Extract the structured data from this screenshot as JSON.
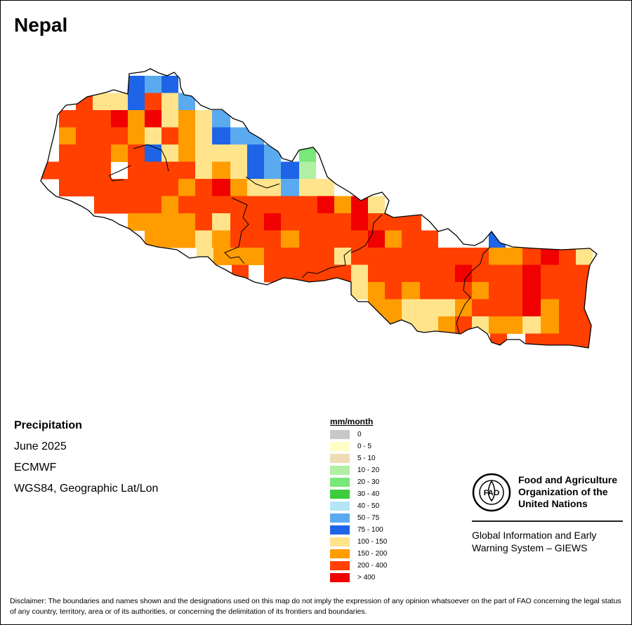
{
  "map": {
    "title": "Nepal",
    "country_boundary": [
      [
        184,
        105
      ],
      [
        206,
        102
      ],
      [
        214,
        98
      ],
      [
        226,
        104
      ],
      [
        238,
        108
      ],
      [
        248,
        103
      ],
      [
        256,
        112
      ],
      [
        257,
        124
      ],
      [
        262,
        135
      ],
      [
        273,
        137
      ],
      [
        286,
        150
      ],
      [
        300,
        156
      ],
      [
        316,
        156
      ],
      [
        332,
        169
      ],
      [
        346,
        174
      ],
      [
        355,
        188
      ],
      [
        372,
        198
      ],
      [
        384,
        208
      ],
      [
        396,
        216
      ],
      [
        402,
        226
      ],
      [
        416,
        230
      ],
      [
        426,
        214
      ],
      [
        446,
        210
      ],
      [
        454,
        220
      ],
      [
        460,
        236
      ],
      [
        466,
        252
      ],
      [
        478,
        262
      ],
      [
        498,
        274
      ],
      [
        514,
        286
      ],
      [
        530,
        278
      ],
      [
        544,
        274
      ],
      [
        554,
        286
      ],
      [
        548,
        304
      ],
      [
        560,
        310
      ],
      [
        600,
        306
      ],
      [
        612,
        316
      ],
      [
        624,
        330
      ],
      [
        638,
        326
      ],
      [
        650,
        336
      ],
      [
        660,
        348
      ],
      [
        676,
        350
      ],
      [
        688,
        344
      ],
      [
        700,
        330
      ],
      [
        712,
        346
      ],
      [
        730,
        352
      ],
      [
        760,
        354
      ],
      [
        800,
        356
      ],
      [
        840,
        354
      ],
      [
        850,
        362
      ],
      [
        840,
        378
      ],
      [
        836,
        400
      ],
      [
        832,
        440
      ],
      [
        842,
        464
      ],
      [
        838,
        496
      ],
      [
        826,
        494
      ],
      [
        812,
        492
      ],
      [
        780,
        492
      ],
      [
        748,
        490
      ],
      [
        740,
        484
      ],
      [
        722,
        484
      ],
      [
        712,
        492
      ],
      [
        700,
        488
      ],
      [
        694,
        476
      ],
      [
        680,
        466
      ],
      [
        666,
        470
      ],
      [
        656,
        476
      ],
      [
        640,
        474
      ],
      [
        620,
        472
      ],
      [
        604,
        474
      ],
      [
        594,
        472
      ],
      [
        586,
        462
      ],
      [
        572,
        456
      ],
      [
        556,
        462
      ],
      [
        548,
        454
      ],
      [
        538,
        444
      ],
      [
        524,
        430
      ],
      [
        510,
        430
      ],
      [
        500,
        420
      ],
      [
        500,
        402
      ],
      [
        480,
        396
      ],
      [
        462,
        400
      ],
      [
        440,
        402
      ],
      [
        420,
        398
      ],
      [
        404,
        396
      ],
      [
        380,
        406
      ],
      [
        362,
        402
      ],
      [
        350,
        396
      ],
      [
        334,
        392
      ],
      [
        320,
        384
      ],
      [
        308,
        378
      ],
      [
        296,
        366
      ],
      [
        284,
        366
      ],
      [
        270,
        368
      ],
      [
        252,
        356
      ],
      [
        238,
        354
      ],
      [
        224,
        352
      ],
      [
        208,
        348
      ],
      [
        200,
        338
      ],
      [
        184,
        326
      ],
      [
        170,
        320
      ],
      [
        160,
        314
      ],
      [
        148,
        310
      ],
      [
        134,
        308
      ],
      [
        126,
        300
      ],
      [
        116,
        294
      ],
      [
        100,
        286
      ],
      [
        80,
        280
      ],
      [
        68,
        270
      ],
      [
        58,
        258
      ],
      [
        62,
        246
      ],
      [
        68,
        230
      ],
      [
        72,
        212
      ],
      [
        76,
        196
      ],
      [
        80,
        178
      ],
      [
        82,
        164
      ],
      [
        94,
        150
      ],
      [
        110,
        148
      ],
      [
        124,
        138
      ],
      [
        150,
        132
      ],
      [
        162,
        128
      ],
      [
        182,
        134
      ]
    ],
    "grid_cells": [
      {
        "row": 0,
        "cols": [
          [
            182,
            206,
            "75 - 100"
          ],
          [
            206,
            230,
            "50 - 75"
          ],
          [
            230,
            254,
            "75 - 100"
          ]
        ]
      },
      {
        "row": 1,
        "cols": [
          [
            108,
            132,
            "200 - 400"
          ],
          [
            132,
            158,
            "100 - 150"
          ],
          [
            158,
            182,
            "100 - 150"
          ],
          [
            182,
            206,
            "75 - 100"
          ],
          [
            206,
            230,
            "200 - 400"
          ],
          [
            230,
            254,
            "100 - 150"
          ],
          [
            254,
            278,
            "50 - 75"
          ]
        ]
      },
      {
        "row": 2,
        "cols": [
          [
            84,
            108,
            "200 - 400"
          ],
          [
            108,
            158,
            "200 - 400"
          ],
          [
            158,
            182,
            "> 400"
          ],
          [
            182,
            206,
            "150 - 200"
          ],
          [
            206,
            230,
            "> 400"
          ],
          [
            230,
            254,
            "100 - 150"
          ],
          [
            254,
            278,
            "150 - 200"
          ],
          [
            278,
            302,
            "100 - 150"
          ],
          [
            302,
            328,
            "50 - 75"
          ]
        ]
      },
      {
        "row": 3,
        "cols": [
          [
            84,
            108,
            "150 - 200"
          ],
          [
            108,
            182,
            "200 - 400"
          ],
          [
            182,
            206,
            "150 - 200"
          ],
          [
            206,
            230,
            "100 - 150"
          ],
          [
            230,
            254,
            "200 - 400"
          ],
          [
            254,
            278,
            "150 - 200"
          ],
          [
            278,
            302,
            "100 - 150"
          ],
          [
            302,
            328,
            "75 - 100"
          ],
          [
            328,
            352,
            "50 - 75"
          ],
          [
            352,
            376,
            "50 - 75"
          ]
        ]
      },
      {
        "row": 4,
        "cols": [
          [
            84,
            158,
            "200 - 400"
          ],
          [
            158,
            182,
            "150 - 200"
          ],
          [
            182,
            206,
            "200 - 400"
          ],
          [
            206,
            230,
            "75 - 100"
          ],
          [
            230,
            254,
            "100 - 150"
          ],
          [
            254,
            278,
            "150 - 200"
          ],
          [
            278,
            352,
            "100 - 150"
          ],
          [
            352,
            376,
            "75 - 100"
          ],
          [
            376,
            400,
            "50 - 75"
          ],
          [
            426,
            450,
            "20 - 30"
          ]
        ]
      },
      {
        "row": 5,
        "cols": [
          [
            60,
            158,
            "200 - 400"
          ],
          [
            182,
            206,
            "200 - 400"
          ],
          [
            206,
            278,
            "200 - 400"
          ],
          [
            278,
            302,
            "100 - 150"
          ],
          [
            302,
            328,
            "150 - 200"
          ],
          [
            328,
            352,
            "100 - 150"
          ],
          [
            352,
            376,
            "75 - 100"
          ],
          [
            376,
            400,
            "50 - 75"
          ],
          [
            400,
            426,
            "75 - 100"
          ],
          [
            426,
            450,
            "10 - 20"
          ]
        ]
      },
      {
        "row": 6,
        "cols": [
          [
            84,
            254,
            "200 - 400"
          ],
          [
            254,
            278,
            "150 - 200"
          ],
          [
            278,
            302,
            "200 - 400"
          ],
          [
            302,
            328,
            "> 400"
          ],
          [
            328,
            352,
            "150 - 200"
          ],
          [
            352,
            400,
            "100 - 150"
          ],
          [
            400,
            426,
            "50 - 75"
          ],
          [
            426,
            476,
            "100 - 150"
          ]
        ]
      },
      {
        "row": 7,
        "cols": [
          [
            134,
            230,
            "200 - 400"
          ],
          [
            230,
            254,
            "150 - 200"
          ],
          [
            254,
            452,
            "200 - 400"
          ],
          [
            452,
            476,
            "> 400"
          ],
          [
            476,
            500,
            "150 - 200"
          ],
          [
            500,
            524,
            "> 400"
          ],
          [
            524,
            548,
            "100 - 150"
          ]
        ]
      },
      {
        "row": 8,
        "cols": [
          [
            182,
            278,
            "150 - 200"
          ],
          [
            278,
            302,
            "200 - 400"
          ],
          [
            302,
            328,
            "100 - 150"
          ],
          [
            328,
            376,
            "200 - 400"
          ],
          [
            376,
            400,
            "> 400"
          ],
          [
            400,
            500,
            "200 - 400"
          ],
          [
            500,
            524,
            "> 400"
          ],
          [
            524,
            548,
            "200 - 400"
          ],
          [
            548,
            600,
            "200 - 400"
          ]
        ]
      },
      {
        "row": 9,
        "cols": [
          [
            206,
            278,
            "150 - 200"
          ],
          [
            278,
            302,
            "100 - 150"
          ],
          [
            302,
            328,
            "150 - 200"
          ],
          [
            328,
            400,
            "200 - 400"
          ],
          [
            400,
            426,
            "150 - 200"
          ],
          [
            426,
            524,
            "200 - 400"
          ],
          [
            524,
            548,
            "> 400"
          ],
          [
            548,
            572,
            "150 - 200"
          ],
          [
            572,
            624,
            "200 - 400"
          ],
          [
            696,
            720,
            "75 - 100"
          ]
        ]
      },
      {
        "row": 10,
        "cols": [
          [
            280,
            304,
            "100 - 150"
          ],
          [
            304,
            328,
            "150 - 200"
          ],
          [
            328,
            376,
            "150 - 200"
          ],
          [
            376,
            476,
            "200 - 400"
          ],
          [
            476,
            500,
            "100 - 150"
          ],
          [
            500,
            696,
            "200 - 400"
          ],
          [
            696,
            744,
            "150 - 200"
          ],
          [
            744,
            770,
            "200 - 400"
          ],
          [
            770,
            796,
            "> 400"
          ],
          [
            796,
            820,
            "200 - 400"
          ],
          [
            820,
            844,
            "100 - 150"
          ]
        ]
      },
      {
        "row": 11,
        "cols": [
          [
            330,
            354,
            "200 - 400"
          ],
          [
            376,
            500,
            "200 - 400"
          ],
          [
            500,
            524,
            "100 - 150"
          ],
          [
            524,
            648,
            "200 - 400"
          ],
          [
            648,
            672,
            "> 400"
          ],
          [
            672,
            744,
            "200 - 400"
          ],
          [
            744,
            770,
            "> 400"
          ],
          [
            770,
            844,
            "200 - 400"
          ]
        ]
      },
      {
        "row": 12,
        "cols": [
          [
            500,
            524,
            "100 - 150"
          ],
          [
            524,
            548,
            "150 - 200"
          ],
          [
            548,
            572,
            "200 - 400"
          ],
          [
            572,
            598,
            "150 - 200"
          ],
          [
            598,
            672,
            "200 - 400"
          ],
          [
            672,
            696,
            "150 - 200"
          ],
          [
            696,
            744,
            "200 - 400"
          ],
          [
            744,
            770,
            "> 400"
          ],
          [
            770,
            844,
            "200 - 400"
          ]
        ]
      },
      {
        "row": 13,
        "cols": [
          [
            524,
            572,
            "150 - 200"
          ],
          [
            572,
            648,
            "100 - 150"
          ],
          [
            648,
            672,
            "150 - 200"
          ],
          [
            672,
            744,
            "200 - 400"
          ],
          [
            744,
            770,
            "> 400"
          ],
          [
            770,
            796,
            "150 - 200"
          ],
          [
            796,
            844,
            "200 - 400"
          ]
        ]
      },
      {
        "row": 14,
        "cols": [
          [
            548,
            572,
            "150 - 200"
          ],
          [
            572,
            598,
            "100 - 150"
          ],
          [
            598,
            624,
            "100 - 150"
          ],
          [
            624,
            648,
            "150 - 200"
          ],
          [
            648,
            672,
            "200 - 400"
          ],
          [
            672,
            696,
            "100 - 150"
          ],
          [
            696,
            744,
            "150 - 200"
          ],
          [
            744,
            770,
            "100 - 150"
          ],
          [
            770,
            796,
            "150 - 200"
          ],
          [
            796,
            844,
            "200 - 400"
          ]
        ]
      },
      {
        "row": 15,
        "cols": [
          [
            698,
            722,
            "200 - 400"
          ],
          [
            748,
            844,
            "200 - 400"
          ]
        ]
      }
    ],
    "colors": {
      "0": "#c8c8c8",
      "0 - 5": "#fffec6",
      "5 - 10": "#efdcb4",
      "10 - 20": "#b0f0a4",
      "20 - 30": "#78e878",
      "30 - 40": "#3ccc3c",
      "40 - 50": "#b4e6f6",
      "50 - 75": "#5aaaf0",
      "75 - 100": "#1e64e6",
      "100 - 150": "#ffe48c",
      "150 - 200": "#ff9c00",
      "200 - 400": "#ff4000",
      "> 400": "#f00000"
    }
  },
  "info": {
    "heading": "Precipitation",
    "period": "June 2025",
    "source": "ECMWF",
    "projection": "WGS84, Geographic Lat/Lon"
  },
  "legend": {
    "title": "mm/month",
    "items": [
      {
        "label": "0",
        "color": "#c8c8c8"
      },
      {
        "label": "0 - 5",
        "color": "#fffec6"
      },
      {
        "label": "5 - 10",
        "color": "#efdcb4"
      },
      {
        "label": "10 - 20",
        "color": "#b0f0a4"
      },
      {
        "label": "20 - 30",
        "color": "#78e878"
      },
      {
        "label": "30 - 40",
        "color": "#3ccc3c"
      },
      {
        "label": "40 - 50",
        "color": "#b4e6f6"
      },
      {
        "label": "50 - 75",
        "color": "#5aaaf0"
      },
      {
        "label": "75 - 100",
        "color": "#1e64e6"
      },
      {
        "label": "100 - 150",
        "color": "#ffe48c"
      },
      {
        "label": "150 - 200",
        "color": "#ff9c00"
      },
      {
        "label": "200 - 400",
        "color": "#ff4000"
      },
      {
        "label": "> 400",
        "color": "#f00000"
      }
    ]
  },
  "branding": {
    "logo_text": "FAO",
    "logo_ring_text": "FIAT PANIS",
    "org_line1": "Food and Agriculture",
    "org_line2": "Organization of the",
    "org_line3": "United Nations",
    "giews_line1": "Global Information and Early",
    "giews_line2": "Warning System – GIEWS"
  },
  "disclaimer": "Disclaimer: The boundaries and names shown and the designations used on this map do not imply the expression of any opinion whatsoever on the part of FAO concerning the legal status of any country, territory, area or of its authorities, or concerning the delimitation of its frontiers and boundaries."
}
